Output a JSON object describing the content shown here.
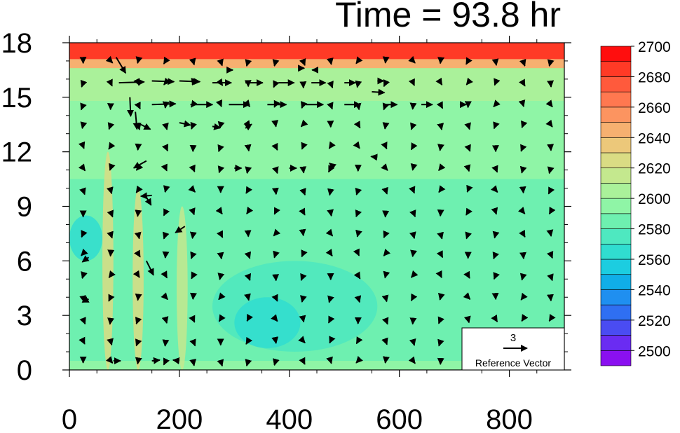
{
  "chart_data": {
    "type": "heatmap",
    "title": "Time = 93.8 hr",
    "xlabel": "",
    "ylabel": "",
    "xlim": [
      0,
      900
    ],
    "ylim": [
      0,
      18
    ],
    "x_ticks": [
      0,
      200,
      400,
      600,
      800
    ],
    "y_ticks": [
      0,
      3,
      6,
      9,
      12,
      15,
      18
    ],
    "colorbar": {
      "levels": [
        2500,
        2510,
        2520,
        2530,
        2540,
        2550,
        2560,
        2570,
        2580,
        2590,
        2600,
        2610,
        2620,
        2630,
        2640,
        2650,
        2660,
        2670,
        2680,
        2690,
        2700
      ],
      "labels": [
        "2500",
        "2520",
        "2540",
        "2560",
        "2580",
        "2600",
        "2620",
        "2640",
        "2660",
        "2680",
        "2700"
      ],
      "colors": [
        "#8a10f0",
        "#6a2cf2",
        "#4a4cf2",
        "#2f6ff2",
        "#1f8ff0",
        "#10aee8",
        "#1ccde0",
        "#30ddd0",
        "#4ee8c0",
        "#6ef0b0",
        "#8ff5a6",
        "#aaf19a",
        "#c4e88e",
        "#dadc84",
        "#ecc87a",
        "#f6b070",
        "#fc9460",
        "#ff7850",
        "#ff5a3c",
        "#ff3a26",
        "#ff0e0e"
      ]
    },
    "fields": [
      {
        "name": "top_layer",
        "level_index": 19,
        "y_range": [
          17.0,
          18.0
        ]
      },
      {
        "name": "upper_transition",
        "level_index": 15,
        "y_range": [
          16.6,
          17.1
        ]
      },
      {
        "name": "upper_mid",
        "level_index": 11,
        "y_range": [
          14.8,
          16.6
        ]
      },
      {
        "name": "mid_layer",
        "level_index": 10,
        "y_range": [
          10.5,
          14.8
        ]
      },
      {
        "name": "lower_mid",
        "level_index": 9,
        "y_range": [
          0.5,
          10.5
        ]
      },
      {
        "name": "low_pool_1",
        "level_index": 8,
        "x_range": [
          260,
          560
        ],
        "y_range": [
          1.0,
          6.0
        ]
      },
      {
        "name": "low_pool_2",
        "level_index": 7,
        "x_range": [
          300,
          420
        ],
        "y_range": [
          1.2,
          4.0
        ]
      },
      {
        "name": "left_pool",
        "level_index": 7,
        "x_range": [
          0,
          60
        ],
        "y_range": [
          6.0,
          8.5
        ]
      },
      {
        "name": "plume_1",
        "level_index": 13,
        "x_range": [
          60,
          80
        ],
        "y_range": [
          0,
          12
        ]
      },
      {
        "name": "plume_2",
        "level_index": 13,
        "x_range": [
          115,
          135
        ],
        "y_range": [
          0,
          10
        ]
      },
      {
        "name": "plume_3",
        "level_index": 12,
        "x_range": [
          195,
          215
        ],
        "y_range": [
          0,
          9
        ]
      }
    ],
    "vectors": {
      "grid_x": [
        25,
        75,
        125,
        175,
        225,
        275,
        325,
        375,
        425,
        475,
        525,
        575,
        625,
        675,
        725,
        775,
        825,
        875
      ],
      "grid_y": [
        0.5,
        1.6,
        2.8,
        4.0,
        5.2,
        6.4,
        7.5,
        8.7,
        9.9,
        11.1,
        12.3,
        13.5,
        14.6,
        15.8,
        17.0
      ],
      "arrows": [
        {
          "x": 90,
          "y": 15.8,
          "u": 3.2,
          "v": 0.1
        },
        {
          "x": 150,
          "y": 15.9,
          "u": 2.8,
          "v": -0.1
        },
        {
          "x": 200,
          "y": 15.9,
          "u": 2.6,
          "v": -0.1
        },
        {
          "x": 260,
          "y": 15.8,
          "u": 2.4,
          "v": 0.0
        },
        {
          "x": 320,
          "y": 15.8,
          "u": 2.2,
          "v": 0.0
        },
        {
          "x": 380,
          "y": 15.8,
          "u": 2.0,
          "v": 0.0
        },
        {
          "x": 440,
          "y": 15.8,
          "u": 1.8,
          "v": 0.0
        },
        {
          "x": 500,
          "y": 15.8,
          "u": 1.4,
          "v": 0.0
        },
        {
          "x": 560,
          "y": 15.9,
          "u": 0.8,
          "v": 0.0
        },
        {
          "x": 150,
          "y": 14.6,
          "u": 3.0,
          "v": 0.1
        },
        {
          "x": 220,
          "y": 14.6,
          "u": 2.8,
          "v": 0.0
        },
        {
          "x": 290,
          "y": 14.6,
          "u": 2.6,
          "v": 0.0
        },
        {
          "x": 360,
          "y": 14.6,
          "u": 2.4,
          "v": 0.0
        },
        {
          "x": 430,
          "y": 14.6,
          "u": 2.2,
          "v": 0.0
        },
        {
          "x": 500,
          "y": 14.6,
          "u": 2.0,
          "v": 0.0
        },
        {
          "x": 570,
          "y": 14.6,
          "u": 1.8,
          "v": 0.0
        },
        {
          "x": 640,
          "y": 14.6,
          "u": 1.4,
          "v": 0.0
        },
        {
          "x": 710,
          "y": 14.6,
          "u": 0.8,
          "v": 0.0
        },
        {
          "x": 550,
          "y": 15.3,
          "u": 1.6,
          "v": -0.1
        },
        {
          "x": 85,
          "y": 17.2,
          "u": 1.2,
          "v": -2.0
        },
        {
          "x": 110,
          "y": 15.0,
          "u": 0.1,
          "v": -2.4
        },
        {
          "x": 120,
          "y": 14.2,
          "u": 0.2,
          "v": -2.2
        },
        {
          "x": 130,
          "y": 13.5,
          "u": 1.2,
          "v": -0.6
        },
        {
          "x": 200,
          "y": 13.6,
          "u": 1.4,
          "v": -0.3
        },
        {
          "x": 260,
          "y": 13.4,
          "u": 1.0,
          "v": -0.2
        },
        {
          "x": 320,
          "y": 13.3,
          "u": 0.8,
          "v": 0.5
        },
        {
          "x": 140,
          "y": 11.5,
          "u": -1.6,
          "v": -0.9
        },
        {
          "x": 150,
          "y": 9.6,
          "u": -1.4,
          "v": -0.1
        },
        {
          "x": 140,
          "y": 9.5,
          "u": 0.6,
          "v": -1.0
        },
        {
          "x": 210,
          "y": 7.9,
          "u": -1.2,
          "v": -0.8
        },
        {
          "x": 140,
          "y": 6.0,
          "u": 0.9,
          "v": -1.8
        },
        {
          "x": 35,
          "y": 6.2,
          "u": -0.8,
          "v": -0.6
        },
        {
          "x": 35,
          "y": 3.9,
          "u": -0.8,
          "v": -0.4
        },
        {
          "x": 300,
          "y": 11.1,
          "u": 0.9,
          "v": 0.0
        },
        {
          "x": 400,
          "y": 11.1,
          "u": 0.9,
          "v": 0.0
        },
        {
          "x": 480,
          "y": 11.2,
          "u": -0.5,
          "v": 0.4
        },
        {
          "x": 560,
          "y": 11.7,
          "u": -0.8,
          "v": 0.1
        },
        {
          "x": 80,
          "y": 0.5,
          "u": 0.9,
          "v": 0.0
        },
        {
          "x": 150,
          "y": 0.5,
          "u": 1.0,
          "v": 0.1
        },
        {
          "x": 200,
          "y": 0.5,
          "u": -0.8,
          "v": 0.1
        },
        {
          "x": 420,
          "y": 16.6,
          "u": 0.5,
          "v": 0.0
        },
        {
          "x": 450,
          "y": 16.5,
          "u": -0.6,
          "v": 0.0
        },
        {
          "x": 290,
          "y": 16.5,
          "u": 0.5,
          "v": 0.0
        }
      ],
      "reference": {
        "label": "Reference Vector",
        "magnitude": "3"
      }
    }
  }
}
